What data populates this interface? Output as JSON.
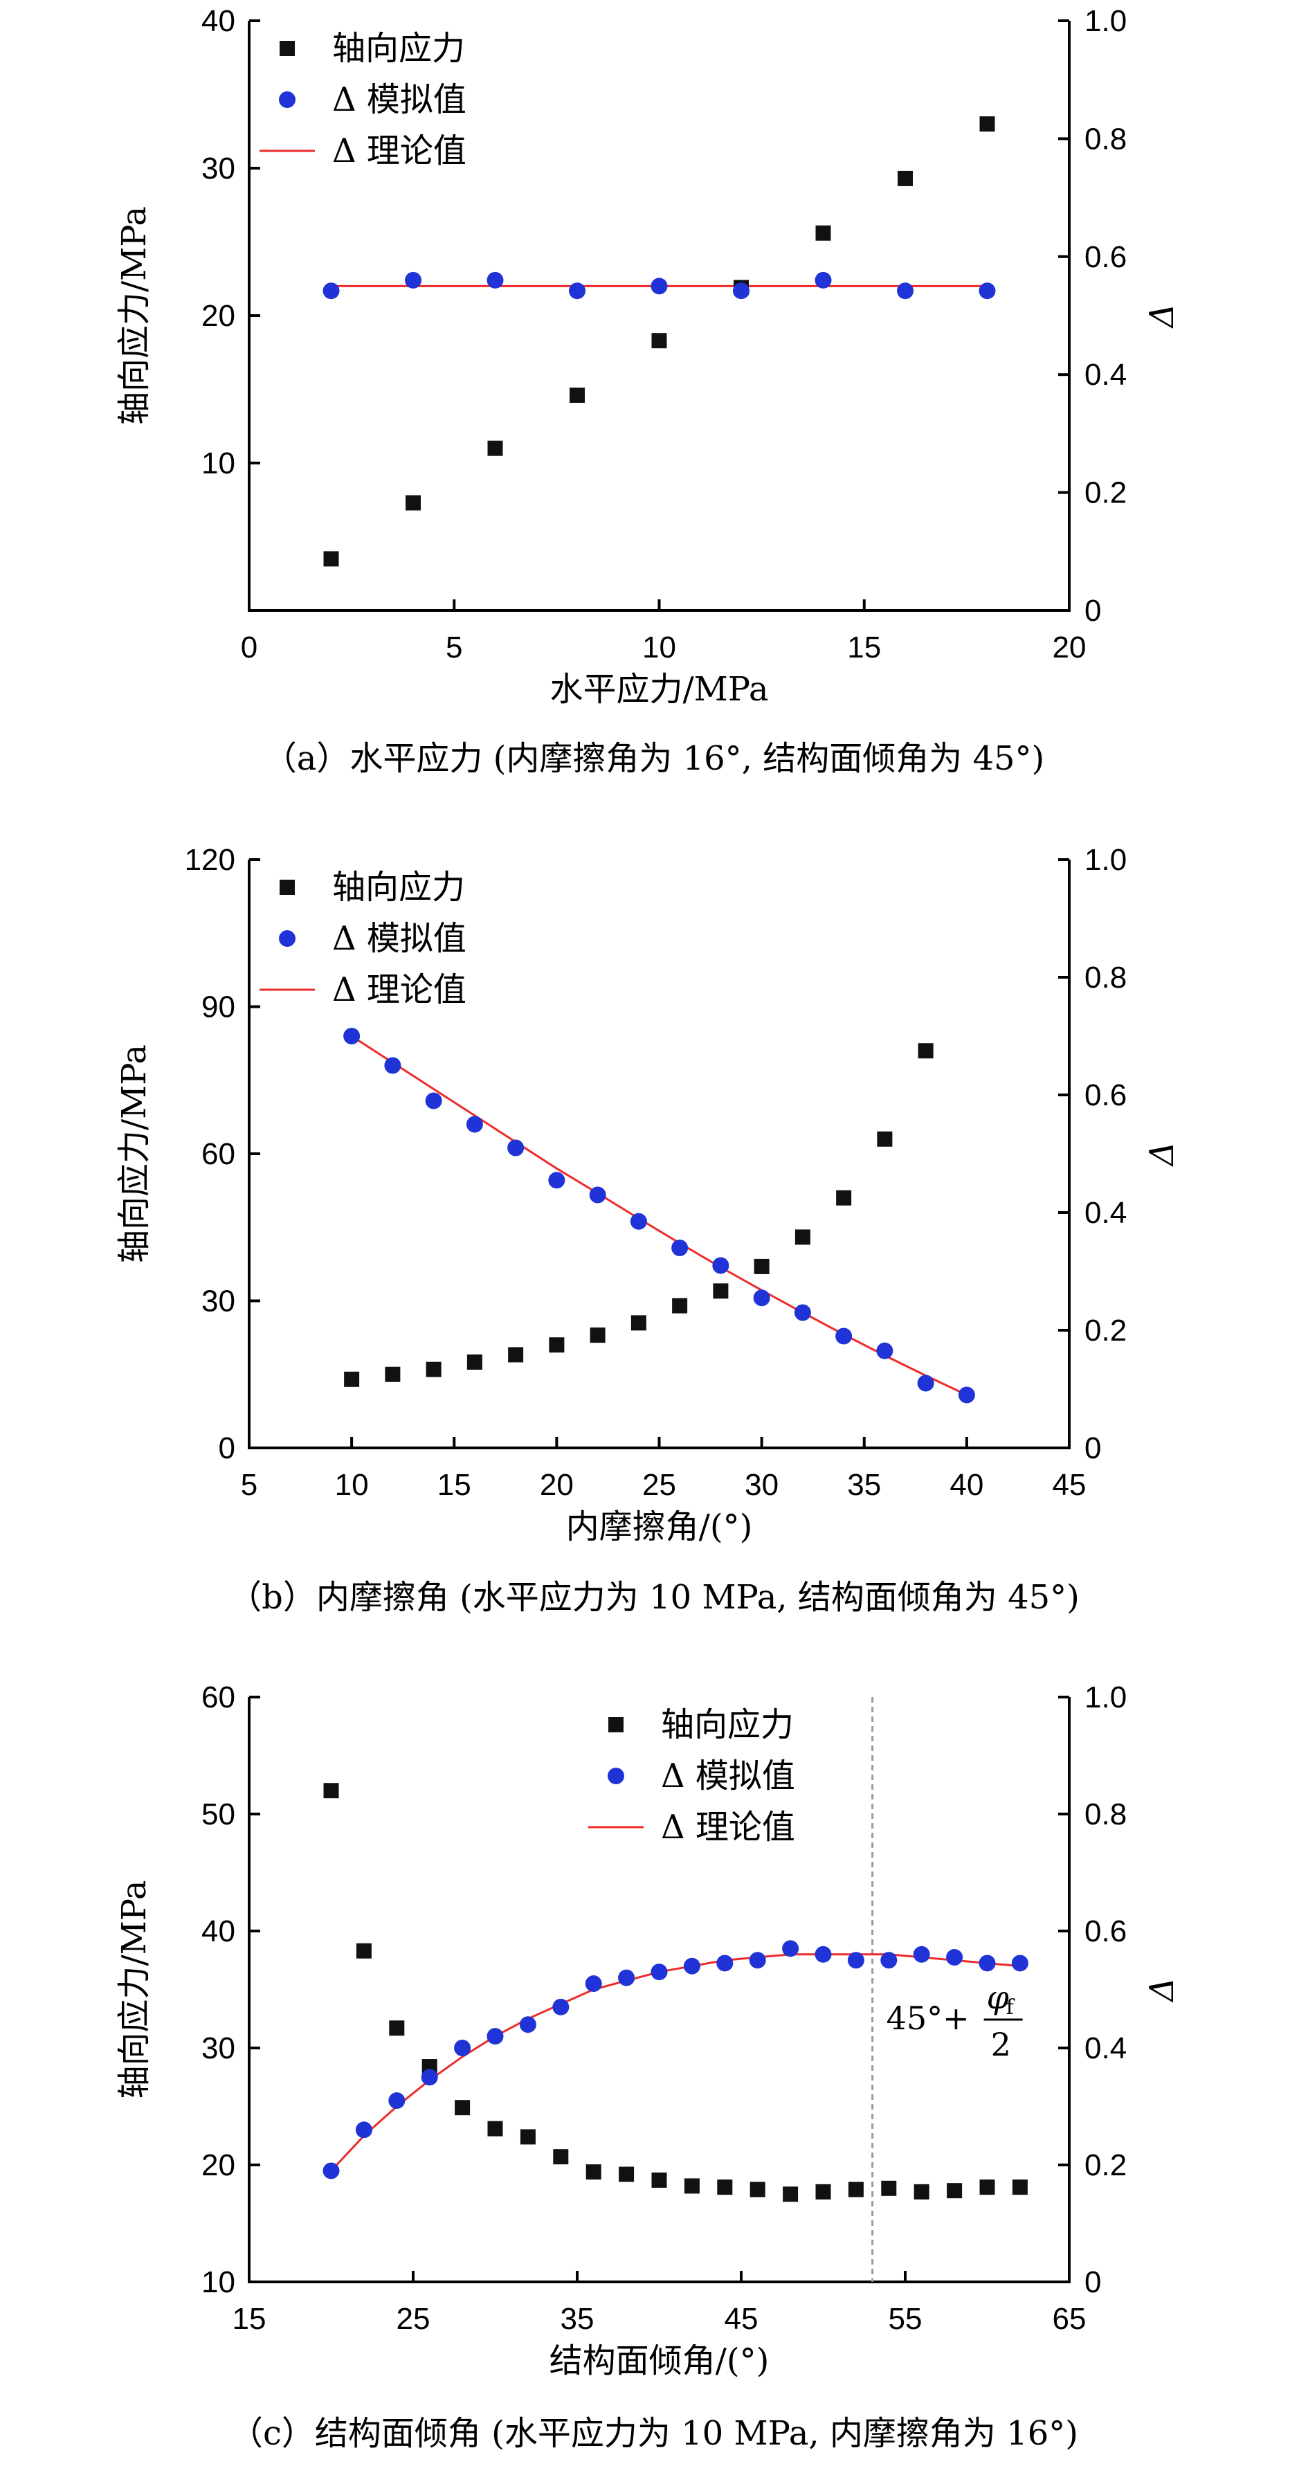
{
  "legend_labels": {
    "axial": "轴向应力",
    "sim": "Δ 模拟值",
    "theory": "Δ 理论值"
  },
  "colors": {
    "axial": "#111111",
    "sim": "#1f33d6",
    "theory": "#ee2b2b",
    "axis": "#000000",
    "dashed": "#9a9a9a"
  },
  "chart_data": [
    {
      "type": "scatter",
      "xlabel": "水平应力/MPa",
      "ylabel": "轴向应力/MPa",
      "y2label": "Δ",
      "caption": "（a）水平应力 (内摩擦角为 16°, 结构面倾角为 45°)",
      "xlim": [
        0,
        20
      ],
      "ylim": [
        0,
        40
      ],
      "y2lim": [
        0,
        1.0
      ],
      "xticks": [
        0,
        5,
        10,
        15,
        20
      ],
      "yticks": [
        10,
        20,
        30,
        40
      ],
      "y2ticks": [
        0,
        0.2,
        0.4,
        0.6,
        0.8,
        1.0
      ],
      "x": [
        2,
        4,
        6,
        8,
        10,
        12,
        14,
        16,
        18
      ],
      "axial": [
        3.5,
        7.3,
        11.0,
        14.6,
        18.3,
        21.9,
        25.6,
        29.3,
        33.0
      ],
      "delta_sim": [
        0.542,
        0.56,
        0.56,
        0.542,
        0.55,
        0.542,
        0.56,
        0.542,
        0.542
      ],
      "theory_x": [
        2,
        18
      ],
      "theory_y": [
        0.55,
        0.55
      ],
      "legend": "top-left"
    },
    {
      "type": "scatter",
      "xlabel": "内摩擦角/(°)",
      "ylabel": "轴向应力/MPa",
      "y2label": "Δ",
      "caption": "（b）内摩擦角 (水平应力为 10 MPa, 结构面倾角为 45°)",
      "xlim": [
        5,
        45
      ],
      "ylim": [
        0,
        120
      ],
      "y2lim": [
        0,
        1.0
      ],
      "xticks": [
        5,
        10,
        15,
        20,
        25,
        30,
        35,
        40,
        45
      ],
      "yticks": [
        0,
        30,
        60,
        90,
        120
      ],
      "y2ticks": [
        0,
        0.2,
        0.4,
        0.6,
        0.8,
        1.0
      ],
      "x": [
        10,
        12,
        14,
        16,
        18,
        20,
        22,
        24,
        26,
        28,
        30,
        32,
        34,
        36,
        38,
        40
      ],
      "axial": [
        14,
        15,
        16,
        17.5,
        19,
        21,
        23,
        25.5,
        29,
        32,
        37,
        43,
        51,
        63,
        81,
        null
      ],
      "delta_sim": [
        0.7,
        0.65,
        0.59,
        0.55,
        0.51,
        0.455,
        0.43,
        0.385,
        0.34,
        0.31,
        0.255,
        0.23,
        0.19,
        0.165,
        0.11,
        0.09
      ],
      "theory_x": [
        10,
        12,
        14,
        16,
        18,
        20,
        22,
        24,
        26,
        28,
        30,
        32,
        34,
        36,
        38,
        40
      ],
      "theory_y": [
        0.7,
        0.655,
        0.61,
        0.565,
        0.52,
        0.475,
        0.433,
        0.39,
        0.348,
        0.307,
        0.268,
        0.23,
        0.193,
        0.157,
        0.123,
        0.09
      ],
      "legend": "top-left"
    },
    {
      "type": "scatter",
      "xlabel": "结构面倾角/(°)",
      "ylabel": "轴向应力/MPa",
      "y2label": "Δ",
      "caption": "（c）结构面倾角 (水平应力为 10 MPa, 内摩擦角为 16°)",
      "xlim": [
        15,
        65
      ],
      "ylim": [
        10,
        60
      ],
      "y2lim": [
        0,
        1.0
      ],
      "xticks": [
        15,
        25,
        35,
        45,
        55,
        65
      ],
      "yticks": [
        10,
        20,
        30,
        40,
        50,
        60
      ],
      "y2ticks": [
        0,
        0.2,
        0.4,
        0.6,
        0.8,
        1.0
      ],
      "x": [
        20,
        22,
        24,
        26,
        28,
        30,
        32,
        34,
        36,
        38,
        40,
        42,
        44,
        46,
        48,
        50,
        52,
        54,
        56,
        58,
        60,
        62
      ],
      "axial": [
        52,
        38.3,
        31.7,
        28.4,
        24.9,
        23.1,
        22.4,
        20.7,
        19.4,
        19.2,
        18.7,
        18.2,
        18.1,
        17.9,
        17.5,
        17.7,
        17.9,
        18.0,
        17.7,
        17.8,
        18.1,
        18.1
      ],
      "delta_sim": [
        0.19,
        0.26,
        0.31,
        0.35,
        0.4,
        0.42,
        0.44,
        0.47,
        0.51,
        0.52,
        0.53,
        0.54,
        0.545,
        0.55,
        0.57,
        0.56,
        0.55,
        0.55,
        0.56,
        0.555,
        0.545,
        0.545
      ],
      "theory_x": [
        20,
        22,
        24,
        26,
        28,
        30,
        32,
        34,
        36,
        38,
        40,
        42,
        44,
        46,
        48,
        50,
        52,
        54,
        56,
        58,
        60,
        62
      ],
      "theory_y": [
        0.19,
        0.25,
        0.3,
        0.345,
        0.385,
        0.42,
        0.45,
        0.475,
        0.5,
        0.515,
        0.53,
        0.54,
        0.55,
        0.555,
        0.56,
        0.56,
        0.56,
        0.56,
        0.555,
        0.55,
        0.545,
        0.54
      ],
      "vline_x": 53,
      "annotation": {
        "prefix": "45°+",
        "numerator": "φ",
        "subscript": "f",
        "denominator": "2"
      },
      "legend": "top-center"
    }
  ]
}
